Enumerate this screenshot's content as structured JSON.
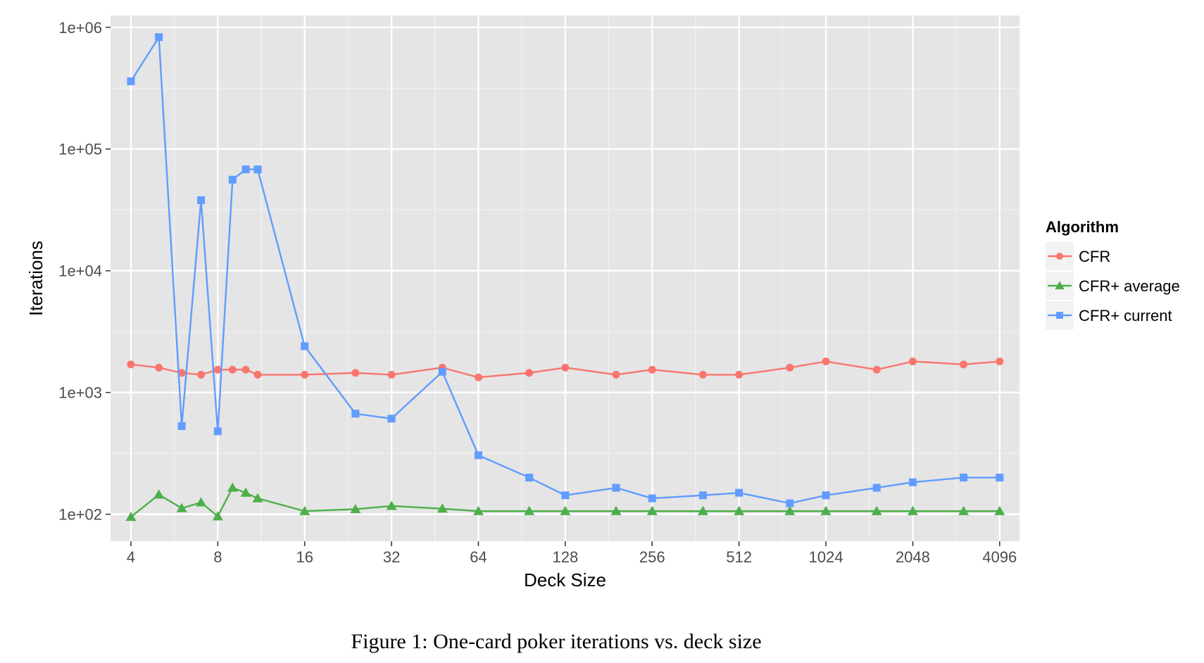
{
  "caption": "Figure 1: One-card poker iterations vs. deck size",
  "chart_data": {
    "type": "line",
    "xlabel": "Deck Size",
    "ylabel": "Iterations",
    "x_scale": "log2",
    "y_scale": "log10",
    "xlim": [
      3.4,
      4800
    ],
    "ylim": [
      60,
      1250000
    ],
    "x_ticks": [
      {
        "value": 4,
        "label": "4"
      },
      {
        "value": 8,
        "label": "8"
      },
      {
        "value": 16,
        "label": "16"
      },
      {
        "value": 32,
        "label": "32"
      },
      {
        "value": 64,
        "label": "64"
      },
      {
        "value": 128,
        "label": "128"
      },
      {
        "value": 256,
        "label": "256"
      },
      {
        "value": 512,
        "label": "512"
      },
      {
        "value": 1024,
        "label": "1024"
      },
      {
        "value": 2048,
        "label": "2048"
      },
      {
        "value": 4096,
        "label": "4096"
      }
    ],
    "y_ticks": [
      {
        "value": 100,
        "label": "1e+02"
      },
      {
        "value": 1000,
        "label": "1e+03"
      },
      {
        "value": 10000,
        "label": "1e+04"
      },
      {
        "value": 100000,
        "label": "1e+05"
      },
      {
        "value": 1000000,
        "label": "1e+06"
      }
    ],
    "grid": true,
    "legend": {
      "title": "Algorithm",
      "position": "right"
    },
    "series": [
      {
        "name": "CFR",
        "color": "#F8766D",
        "marker": "circle",
        "points": [
          [
            4,
            1700
          ],
          [
            5,
            1600
          ],
          [
            6,
            1450
          ],
          [
            7,
            1400
          ],
          [
            8,
            1540
          ],
          [
            9,
            1540
          ],
          [
            10,
            1540
          ],
          [
            11,
            1400
          ],
          [
            16,
            1400
          ],
          [
            24,
            1450
          ],
          [
            32,
            1400
          ],
          [
            48,
            1600
          ],
          [
            64,
            1330
          ],
          [
            96,
            1450
          ],
          [
            128,
            1600
          ],
          [
            192,
            1400
          ],
          [
            256,
            1540
          ],
          [
            384,
            1400
          ],
          [
            512,
            1400
          ],
          [
            768,
            1600
          ],
          [
            1024,
            1800
          ],
          [
            1536,
            1540
          ],
          [
            2048,
            1800
          ],
          [
            3072,
            1700
          ],
          [
            4096,
            1800
          ]
        ]
      },
      {
        "name": "CFR+ average",
        "color": "#4DAF4A",
        "marker": "triangle",
        "points": [
          [
            4,
            95
          ],
          [
            5,
            145
          ],
          [
            6,
            112
          ],
          [
            7,
            125
          ],
          [
            8,
            96
          ],
          [
            9,
            165
          ],
          [
            10,
            150
          ],
          [
            11,
            135
          ],
          [
            16,
            106
          ],
          [
            24,
            110
          ],
          [
            32,
            117
          ],
          [
            48,
            111
          ],
          [
            64,
            106
          ],
          [
            96,
            106
          ],
          [
            128,
            106
          ],
          [
            192,
            106
          ],
          [
            256,
            106
          ],
          [
            384,
            106
          ],
          [
            512,
            106
          ],
          [
            768,
            106
          ],
          [
            1024,
            106
          ],
          [
            1536,
            106
          ],
          [
            2048,
            106
          ],
          [
            3072,
            106
          ],
          [
            4096,
            106
          ]
        ]
      },
      {
        "name": "CFR+ current",
        "color": "#619CFF",
        "marker": "square",
        "points": [
          [
            4,
            360000
          ],
          [
            5,
            830000
          ],
          [
            6,
            530
          ],
          [
            7,
            38000
          ],
          [
            8,
            480
          ],
          [
            9,
            56000
          ],
          [
            10,
            68000
          ],
          [
            11,
            68000
          ],
          [
            16,
            2400
          ],
          [
            24,
            670
          ],
          [
            32,
            610
          ],
          [
            48,
            1480
          ],
          [
            64,
            305
          ],
          [
            96,
            200
          ],
          [
            128,
            143
          ],
          [
            192,
            165
          ],
          [
            256,
            135
          ],
          [
            384,
            143
          ],
          [
            512,
            150
          ],
          [
            768,
            123
          ],
          [
            1024,
            143
          ],
          [
            1536,
            165
          ],
          [
            2048,
            183
          ],
          [
            3072,
            200
          ],
          [
            4096,
            200
          ]
        ]
      }
    ]
  }
}
